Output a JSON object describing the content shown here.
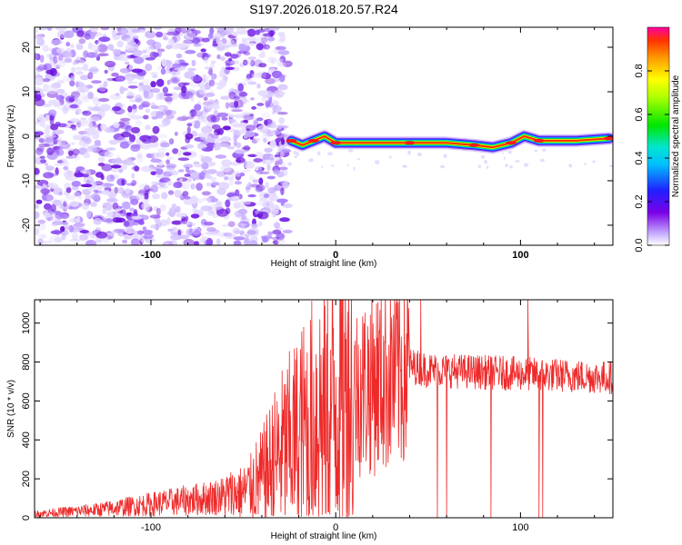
{
  "title": "S197.2026.018.20.57.R24",
  "chart_data": [
    {
      "type": "heatmap",
      "xlabel": "Height of straight line (km)",
      "ylabel": "Frequency (Hz)",
      "xlim": [
        -163,
        150
      ],
      "ylim": [
        -24.5,
        24.5
      ],
      "xticks": [
        "-100",
        "0",
        "100"
      ],
      "yticks": [
        "-20",
        "-10",
        "0",
        "10",
        "20"
      ],
      "colorbar": {
        "label": "Normalized spectral amplitude",
        "range": [
          0,
          1
        ],
        "ticks": [
          "0.0",
          "0.2",
          "0.4",
          "0.6",
          "0.8"
        ]
      },
      "noise_region_x": [
        -163,
        -26
      ],
      "ridge": [
        {
          "x": -24,
          "y": -1
        },
        {
          "x": -18,
          "y": -2
        },
        {
          "x": -12,
          "y": -1
        },
        {
          "x": -6,
          "y": 0
        },
        {
          "x": 0,
          "y": -1.5
        },
        {
          "x": 16,
          "y": -1.5
        },
        {
          "x": 40,
          "y": -1.5
        },
        {
          "x": 60,
          "y": -1.5
        },
        {
          "x": 75,
          "y": -2
        },
        {
          "x": 85,
          "y": -2.5
        },
        {
          "x": 95,
          "y": -1.5
        },
        {
          "x": 102,
          "y": 0
        },
        {
          "x": 110,
          "y": -1
        },
        {
          "x": 130,
          "y": -1
        },
        {
          "x": 148,
          "y": -0.5
        }
      ]
    },
    {
      "type": "line",
      "xlabel": "Height of straight line (km)",
      "ylabel": "SNR (10 * v/v)",
      "xlim": [
        -163,
        150
      ],
      "ylim": [
        0,
        1120
      ],
      "xticks": [
        "-100",
        "0",
        "100"
      ],
      "yticks": [
        "0",
        "200",
        "400",
        "600",
        "800",
        "1000"
      ],
      "color": "#ee2a2a",
      "trend": [
        {
          "x": -163,
          "y": 20
        },
        {
          "x": -130,
          "y": 40
        },
        {
          "x": -100,
          "y": 70
        },
        {
          "x": -70,
          "y": 100
        },
        {
          "x": -50,
          "y": 130
        },
        {
          "x": -40,
          "y": 200
        },
        {
          "x": -30,
          "y": 330
        },
        {
          "x": -20,
          "y": 420
        },
        {
          "x": -10,
          "y": 530
        },
        {
          "x": 0,
          "y": 600
        },
        {
          "x": 10,
          "y": 650
        },
        {
          "x": 20,
          "y": 700
        },
        {
          "x": 30,
          "y": 740
        },
        {
          "x": 40,
          "y": 780
        },
        {
          "x": 50,
          "y": 760
        },
        {
          "x": 100,
          "y": 740
        },
        {
          "x": 150,
          "y": 720
        }
      ],
      "dips": [
        {
          "x": 55,
          "y": 0
        },
        {
          "x": 60,
          "y": 0
        },
        {
          "x": 84,
          "y": 0
        },
        {
          "x": 104,
          "y": 200
        },
        {
          "x": 110,
          "y": 0
        },
        {
          "x": 112,
          "y": 0
        }
      ],
      "spikes": [
        {
          "x": 46,
          "y": 1120
        },
        {
          "x": 104,
          "y": 1120
        }
      ]
    }
  ]
}
